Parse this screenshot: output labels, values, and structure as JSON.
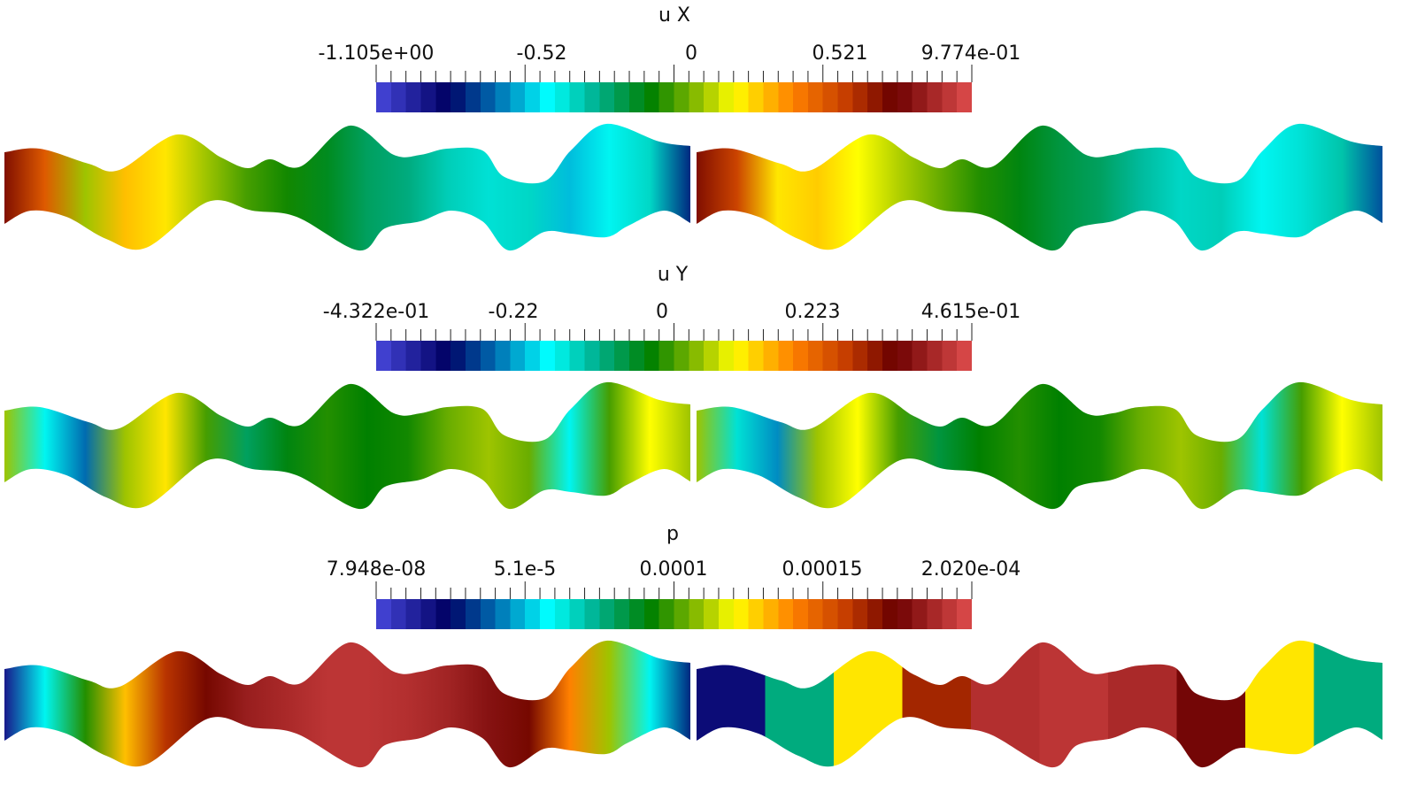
{
  "chart_data": [
    {
      "type": "heatmap",
      "title": "u X",
      "colorbar": {
        "tick_labels": [
          "-1.105e+00",
          "-0.52",
          "0",
          "0.521",
          "9.774e-01"
        ],
        "range": [
          -1.105,
          0.9774
        ]
      },
      "panels": [
        "left",
        "right"
      ],
      "fields": {
        "left": [
          0.85,
          0.75,
          0.55,
          0.65,
          0.62,
          0.55,
          0.5,
          0.47,
          0.44,
          0.4,
          0.38,
          0.34,
          0.32,
          0.33,
          0.25,
          0.3,
          0.33,
          0.15
        ],
        "right": [
          0.85,
          0.78,
          0.62,
          0.64,
          0.6,
          0.56,
          0.52,
          0.48,
          0.45,
          0.42,
          0.4,
          0.36,
          0.33,
          0.34,
          0.3,
          0.32,
          0.35,
          0.18
        ]
      }
    },
    {
      "type": "heatmap",
      "title": "u Y",
      "colorbar": {
        "tick_labels": [
          "-4.322e-01",
          "-0.22",
          "0",
          "0.223",
          "4.615e-01"
        ],
        "range": [
          -0.4322,
          0.4615
        ]
      },
      "panels": [
        "left",
        "right"
      ],
      "fields": {
        "left": [
          0.55,
          0.3,
          0.2,
          0.55,
          0.62,
          0.5,
          0.4,
          0.45,
          0.48,
          0.46,
          0.47,
          0.52,
          0.55,
          0.52,
          0.3,
          0.5,
          0.6,
          0.55
        ],
        "right": [
          0.55,
          0.32,
          0.22,
          0.55,
          0.6,
          0.5,
          0.42,
          0.46,
          0.48,
          0.46,
          0.47,
          0.52,
          0.55,
          0.52,
          0.32,
          0.5,
          0.6,
          0.55
        ]
      }
    },
    {
      "type": "heatmap",
      "title": "p",
      "colorbar": {
        "tick_labels": [
          "7.948e-08",
          "5.1e-5",
          "0.0001",
          "0.00015",
          "2.020e-04"
        ],
        "range": [
          7.948e-08,
          0.000202
        ]
      },
      "panels": [
        "left",
        "right"
      ],
      "fields": {
        "left": [
          0.08,
          0.3,
          0.48,
          0.65,
          0.8,
          0.86,
          0.92,
          0.94,
          0.96,
          0.96,
          0.95,
          0.93,
          0.9,
          0.86,
          0.7,
          0.55,
          0.3,
          0.15
        ],
        "right_segments": [
          0.1,
          0.38,
          0.62,
          0.82,
          0.95,
          0.96,
          0.94,
          0.88,
          0.62,
          0.38
        ]
      }
    }
  ]
}
